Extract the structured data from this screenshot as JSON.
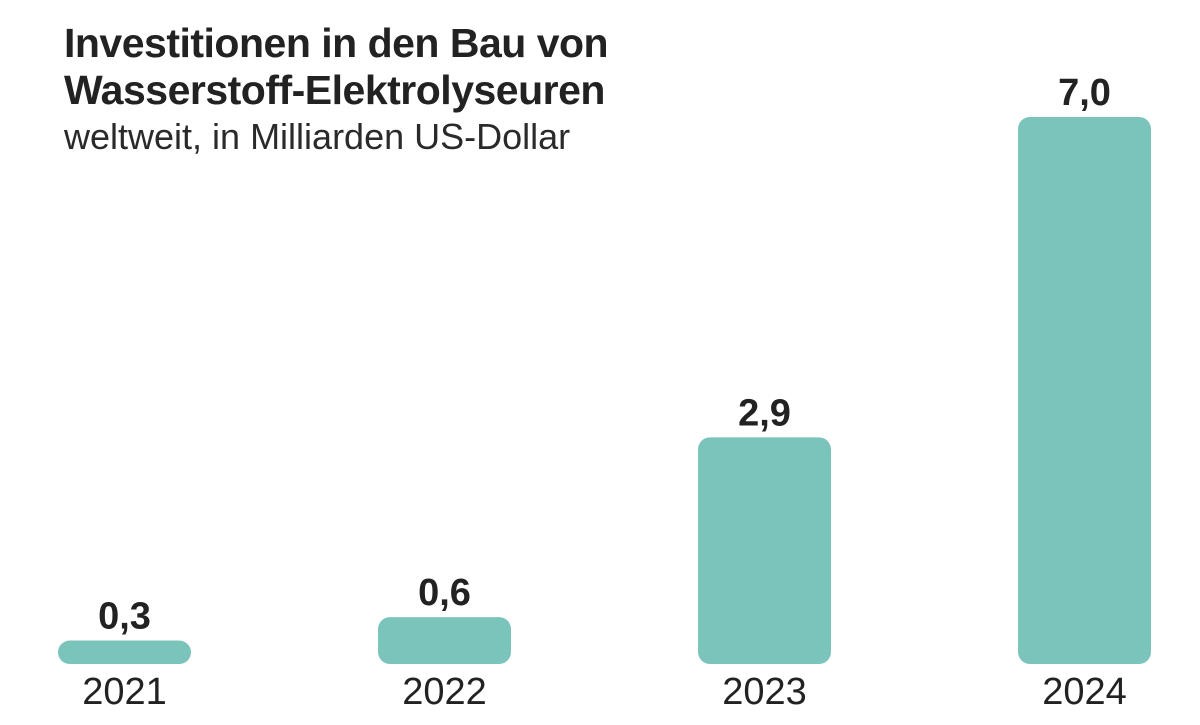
{
  "chart_data": {
    "type": "bar",
    "title": "Investitionen in den Bau von Wasserstoff-Elektrolyseuren",
    "subtitle": "weltweit, in Milliarden US-Dollar",
    "categories": [
      "2021",
      "2022",
      "2023",
      "2024"
    ],
    "values": [
      0.3,
      0.6,
      2.9,
      7.0
    ],
    "value_labels": [
      "0,3",
      "0,6",
      "2,9",
      "7,0"
    ],
    "xlabel": "",
    "ylabel": "",
    "ylim": [
      0,
      7.0
    ],
    "grid": false,
    "legend": "none",
    "bar_color": "#7bc4bc",
    "text_color": "#222222"
  }
}
